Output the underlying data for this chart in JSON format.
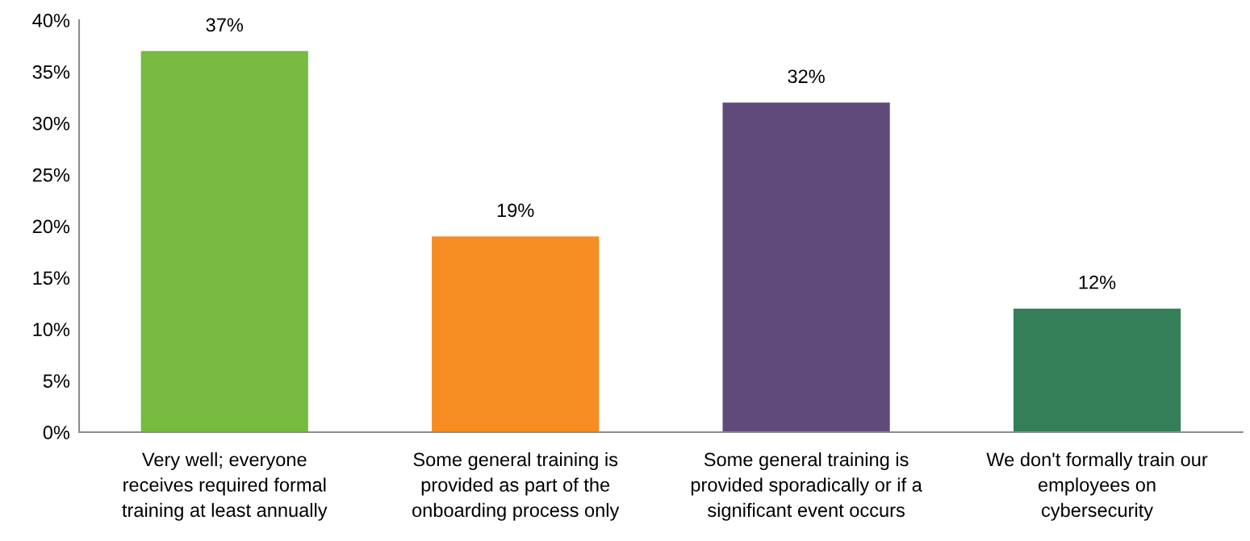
{
  "chart_data": {
    "type": "bar",
    "categories": [
      "Very well; everyone\nreceives required formal\ntraining at least annually",
      "Some general training is\nprovided as part of the\nonboarding process only",
      "Some general training is\nprovided sporadically or if a\nsignificant event occurs",
      "We don't formally train our\nemployees on\ncybersecurity"
    ],
    "values": [
      37,
      19,
      32,
      12
    ],
    "value_labels": [
      "37%",
      "19%",
      "32%",
      "12%"
    ],
    "colors": [
      "#77bb41",
      "#f58d22",
      "#604a7b",
      "#357f58"
    ],
    "ylim": [
      0,
      40
    ],
    "yticks": [
      {
        "value": 0,
        "label": "0%"
      },
      {
        "value": 5,
        "label": "5%"
      },
      {
        "value": 10,
        "label": "10%"
      },
      {
        "value": 15,
        "label": "15%"
      },
      {
        "value": 20,
        "label": "20%"
      },
      {
        "value": 25,
        "label": "25%"
      },
      {
        "value": 30,
        "label": "30%"
      },
      {
        "value": 35,
        "label": "35%"
      },
      {
        "value": 40,
        "label": "40%"
      }
    ],
    "grid": false,
    "legend": false
  }
}
